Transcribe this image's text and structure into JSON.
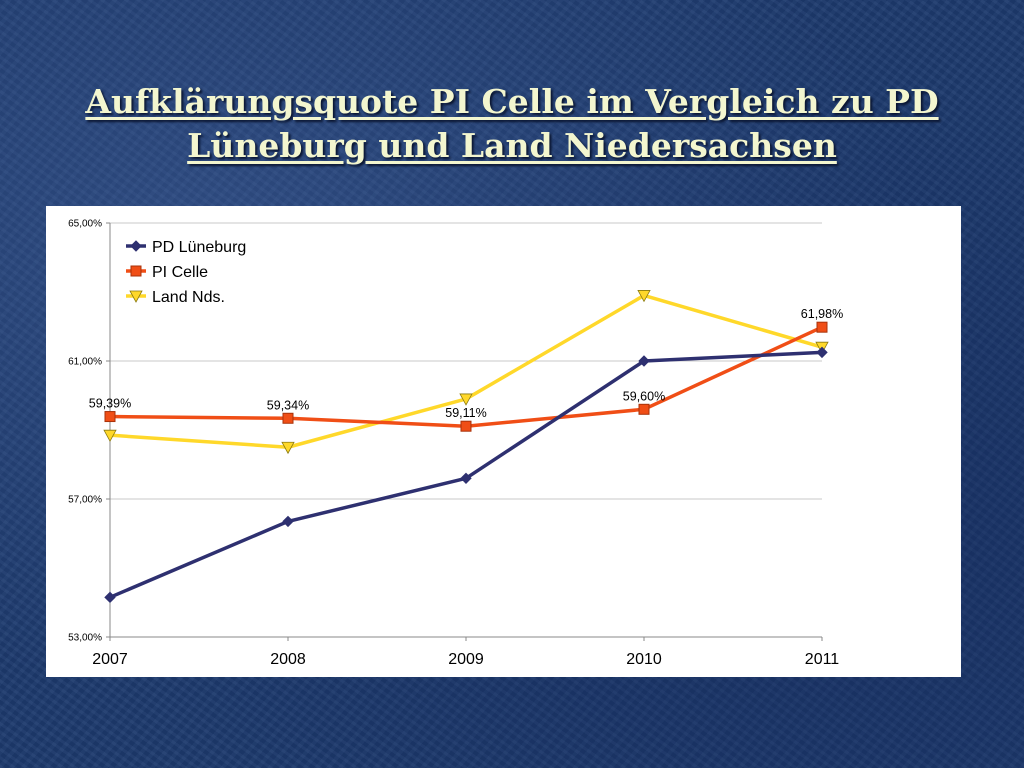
{
  "slide": {
    "title_line1": "Aufklärungsquote PI Celle im Vergleich zu PD",
    "title_line2": "Lüneburg  und Land Niedersachsen"
  },
  "chart_data": {
    "type": "line",
    "title": "",
    "xlabel": "",
    "ylabel": "",
    "categories": [
      "2007",
      "2008",
      "2009",
      "2010",
      "2011"
    ],
    "yticks": [
      "53,00%",
      "57,00%",
      "61,00%",
      "65,00%"
    ],
    "ylim": [
      53,
      65
    ],
    "grid": "horizontal",
    "legend_position": "top-left",
    "series": [
      {
        "name": "PD Lüneburg",
        "values": [
          54.15,
          56.35,
          57.6,
          61.0,
          61.25
        ],
        "color": "#2e3070",
        "marker": "diamond",
        "labels": [
          "",
          "",
          "",
          "",
          ""
        ]
      },
      {
        "name": "PI Celle",
        "values": [
          59.39,
          59.34,
          59.11,
          59.6,
          61.98
        ],
        "color": "#f04e16",
        "marker": "square",
        "labels": [
          "59,39%",
          "59,34%",
          "59,11%",
          "59,60%",
          "61,98%"
        ]
      },
      {
        "name": "Land Nds.",
        "values": [
          58.85,
          58.5,
          59.9,
          62.9,
          61.4
        ],
        "color": "#ffd82a",
        "marker": "triangle-down",
        "labels": [
          "",
          "",
          "",
          "",
          ""
        ]
      }
    ]
  }
}
